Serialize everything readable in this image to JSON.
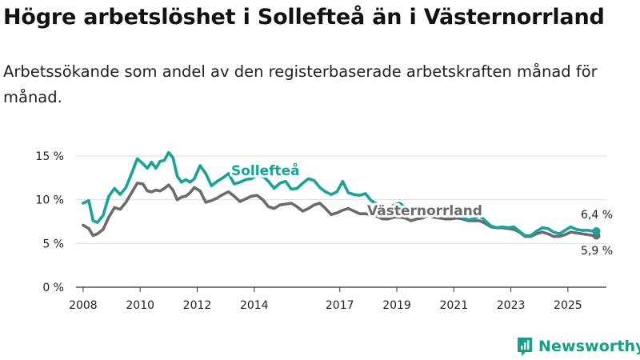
{
  "title": "Högre arbetslöshet i Sollefteå än i Västernorrland",
  "subtitle": "Arbetssökande som andel av den registerbaserade arbetskraften månad för månad.",
  "brand": {
    "name": "Newsworthy",
    "color": "#16a085"
  },
  "chart_data": {
    "type": "line",
    "title": "Högre arbetslöshet i Sollefteå än i Västernorrland",
    "ylabel": "",
    "xlabel": "",
    "ylim": [
      0,
      15
    ],
    "xlim": [
      2007.75,
      2026.35
    ],
    "y_ticks": [
      0,
      5,
      10,
      15
    ],
    "y_tick_labels": [
      "0 %",
      "5 %",
      "10 %",
      "15 %"
    ],
    "x_ticks": [
      2008,
      2010,
      2012,
      2014,
      2017,
      2019,
      2021,
      2023,
      2025
    ],
    "x_tick_labels": [
      "2008",
      "2010",
      "2012",
      "2014",
      "2017",
      "2019",
      "2021",
      "2023",
      "2025"
    ],
    "grid": "horizontal",
    "series": [
      {
        "name": "Sollefteå",
        "color": "#16a39a",
        "end_label": "6,4 %",
        "x": [
          2008.0,
          2008.2,
          2008.35,
          2008.5,
          2008.7,
          2008.9,
          2009.1,
          2009.3,
          2009.5,
          2009.7,
          2009.9,
          2010.1,
          2010.25,
          2010.4,
          2010.55,
          2010.7,
          2010.85,
          2011.0,
          2011.15,
          2011.3,
          2011.45,
          2011.6,
          2011.75,
          2011.9,
          2012.1,
          2012.3,
          2012.5,
          2012.7,
          2012.9,
          2013.1,
          2013.3,
          2013.5,
          2013.7,
          2013.9,
          2014.1,
          2014.3,
          2014.5,
          2014.7,
          2014.9,
          2015.1,
          2015.3,
          2015.5,
          2015.7,
          2015.9,
          2016.1,
          2016.3,
          2016.5,
          2016.7,
          2016.9,
          2017.1,
          2017.3,
          2017.5,
          2017.7,
          2017.9,
          2018.1,
          2018.3,
          2018.5,
          2018.7,
          2018.9,
          2019.1,
          2019.3,
          2019.5,
          2019.7,
          2019.9,
          2020.1,
          2020.3,
          2020.5,
          2020.7,
          2020.9,
          2021.1,
          2021.3,
          2021.5,
          2021.7,
          2021.9,
          2022.1,
          2022.3,
          2022.5,
          2022.7,
          2022.9,
          2023.1,
          2023.3,
          2023.5,
          2023.7,
          2023.9,
          2024.1,
          2024.3,
          2024.5,
          2024.7,
          2024.9,
          2025.1,
          2025.3,
          2025.5,
          2025.7,
          2025.9,
          2026.0
        ],
        "values": [
          9.6,
          9.9,
          7.6,
          7.4,
          8.2,
          10.4,
          11.3,
          10.6,
          11.4,
          13.0,
          14.7,
          14.1,
          13.6,
          14.3,
          13.6,
          14.4,
          14.5,
          15.4,
          14.8,
          12.7,
          12.0,
          12.3,
          12.0,
          12.4,
          13.9,
          13.0,
          11.6,
          12.1,
          12.5,
          13.0,
          11.8,
          12.0,
          12.3,
          12.4,
          12.8,
          12.7,
          12.1,
          11.3,
          11.9,
          12.1,
          11.2,
          11.3,
          11.9,
          12.4,
          12.2,
          11.4,
          10.9,
          10.6,
          10.9,
          12.1,
          10.8,
          10.6,
          10.5,
          10.7,
          9.9,
          9.5,
          8.8,
          8.9,
          9.4,
          9.6,
          9.1,
          8.6,
          8.8,
          8.6,
          8.8,
          8.7,
          8.4,
          8.2,
          8.2,
          8.3,
          8.0,
          7.7,
          7.8,
          8.2,
          7.6,
          7.0,
          6.8,
          6.9,
          6.8,
          6.9,
          6.4,
          5.9,
          5.9,
          6.4,
          6.8,
          6.7,
          6.3,
          6.1,
          6.5,
          6.9,
          6.6,
          6.5,
          6.5,
          6.4,
          6.4
        ]
      },
      {
        "name": "Västernorrland",
        "color": "#6b6b6b",
        "end_label": "5,9 %",
        "x": [
          2008.0,
          2008.2,
          2008.35,
          2008.5,
          2008.7,
          2008.9,
          2009.1,
          2009.3,
          2009.5,
          2009.7,
          2009.9,
          2010.1,
          2010.25,
          2010.4,
          2010.55,
          2010.7,
          2010.85,
          2011.0,
          2011.15,
          2011.3,
          2011.45,
          2011.6,
          2011.75,
          2011.9,
          2012.1,
          2012.3,
          2012.5,
          2012.7,
          2012.9,
          2013.1,
          2013.3,
          2013.5,
          2013.7,
          2013.9,
          2014.1,
          2014.3,
          2014.5,
          2014.7,
          2014.9,
          2015.1,
          2015.3,
          2015.5,
          2015.7,
          2015.9,
          2016.1,
          2016.3,
          2016.5,
          2016.7,
          2016.9,
          2017.1,
          2017.3,
          2017.5,
          2017.7,
          2017.9,
          2018.1,
          2018.3,
          2018.5,
          2018.7,
          2018.9,
          2019.1,
          2019.3,
          2019.5,
          2019.7,
          2019.9,
          2020.1,
          2020.3,
          2020.5,
          2020.7,
          2020.9,
          2021.1,
          2021.3,
          2021.5,
          2021.7,
          2021.9,
          2022.1,
          2022.3,
          2022.5,
          2022.7,
          2022.9,
          2023.1,
          2023.3,
          2023.5,
          2023.7,
          2023.9,
          2024.1,
          2024.3,
          2024.5,
          2024.7,
          2024.9,
          2025.1,
          2025.3,
          2025.5,
          2025.7,
          2025.9,
          2026.0
        ],
        "values": [
          7.1,
          6.7,
          5.9,
          6.1,
          6.6,
          8.0,
          9.1,
          8.9,
          9.7,
          10.8,
          11.9,
          11.8,
          11.0,
          10.9,
          11.1,
          11.0,
          11.3,
          11.7,
          11.1,
          10.0,
          10.3,
          10.4,
          10.8,
          11.4,
          11.0,
          9.7,
          9.9,
          10.2,
          10.6,
          10.9,
          10.4,
          9.8,
          10.1,
          10.4,
          10.5,
          10.0,
          9.2,
          9.0,
          9.4,
          9.5,
          9.6,
          9.2,
          8.7,
          9.0,
          9.4,
          9.6,
          9.0,
          8.3,
          8.5,
          8.8,
          9.0,
          8.7,
          8.4,
          8.4,
          8.3,
          8.1,
          7.8,
          7.8,
          8.0,
          8.0,
          7.9,
          7.6,
          7.8,
          7.9,
          8.2,
          8.0,
          7.9,
          7.8,
          7.8,
          7.9,
          7.8,
          7.6,
          7.6,
          7.6,
          7.3,
          6.9,
          6.8,
          6.8,
          6.7,
          6.6,
          6.3,
          5.8,
          5.8,
          6.1,
          6.3,
          6.1,
          5.8,
          5.8,
          6.0,
          6.3,
          6.2,
          6.1,
          6.0,
          5.9,
          5.9
        ]
      }
    ]
  }
}
